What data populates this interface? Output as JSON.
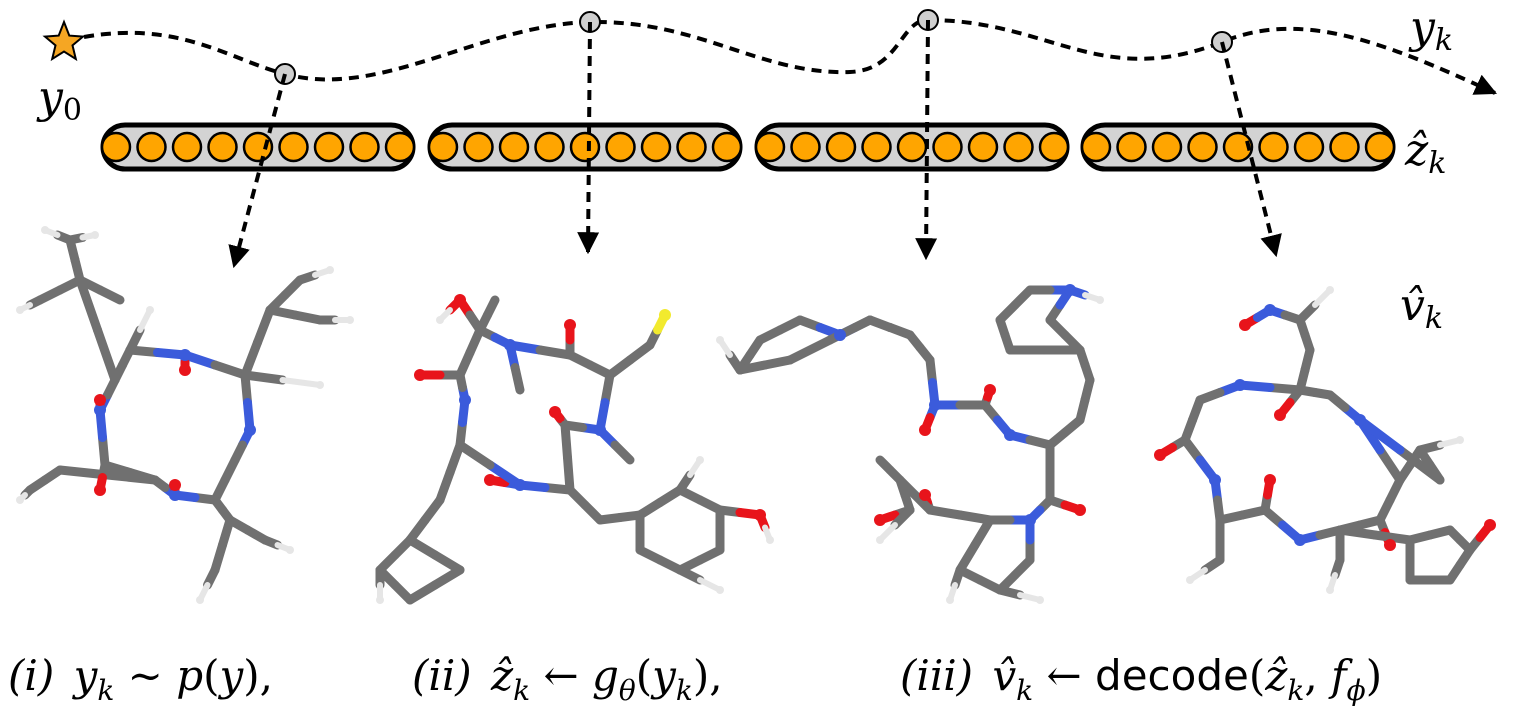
{
  "figure": {
    "trajectory_label": "y",
    "trajectory_label_sub": "k",
    "start_label": "y",
    "start_label_sub": "0",
    "latent_label": "ẑ",
    "latent_label_sub": "k",
    "molecule_label": "v̂",
    "molecule_label_sub": "k",
    "latent_units_per_vector": 9,
    "latent_vector_count": 4
  },
  "captions": {
    "step1": {
      "num": "(i)",
      "y": "y",
      "k": "k",
      "rel": " ∼ ",
      "p": "p",
      "open": "(",
      "yy": "y",
      "close": "),"
    },
    "step2": {
      "num": "(ii)",
      "z": "ẑ",
      "k": "k",
      "arrow": " ← ",
      "g": "g",
      "theta": "θ",
      "open": "(",
      "y": "y",
      "k2": "k",
      "close": "),"
    },
    "step3": {
      "num": "(iii)",
      "v": "v̂",
      "k": "k",
      "arrow": " ← ",
      "decode": "decode",
      "open": "(",
      "z": "ẑ",
      "k2": "k",
      "comma": ", ",
      "f": "f",
      "phi": "ϕ",
      "close": ")"
    }
  },
  "colors": {
    "star": "#F5A623",
    "node": "#cfcfcf",
    "unit": "#FFA500",
    "bar": "#d3d3d3",
    "carbon": "#707070",
    "oxygen": "#e8141b",
    "nitrogen": "#3b5bdb",
    "sulfur": "#f2ea2e",
    "hydrogen": "#e6e6e6"
  }
}
